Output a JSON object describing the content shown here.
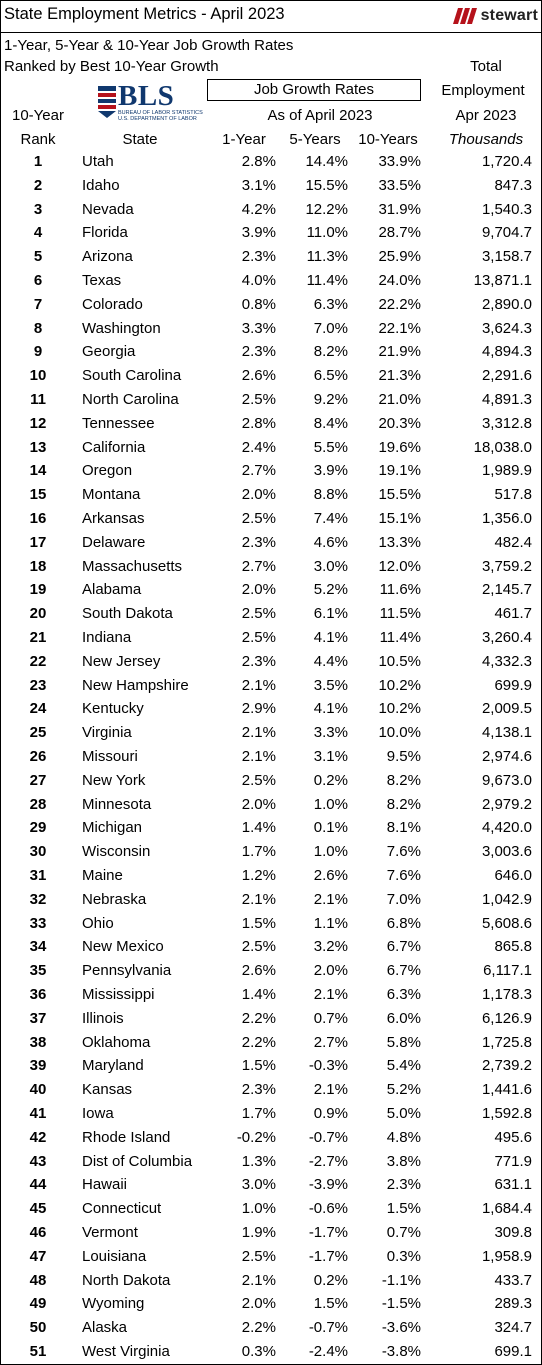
{
  "header": {
    "title": "State Employment Metrics - April 2023",
    "logo_text": "stewart",
    "subtitle_line1": "1-Year, 5-Year & 10-Year Job Growth Rates",
    "subtitle_line2": "Ranked by Best 10-Year Growth",
    "bls_text": "BLS",
    "bls_subtext_1": "BUREAU OF LABOR STATISTICS",
    "bls_subtext_2": "U.S. DEPARTMENT OF LABOR",
    "job_growth_box": "Job Growth Rates",
    "as_of": "As of April 2023",
    "total": "Total",
    "employment": "Employment",
    "apr": "Apr 2023",
    "rank_top": "10-Year",
    "rank_bottom": "Rank",
    "col_state": "State",
    "col_1y": "1-Year",
    "col_5y": "5-Years",
    "col_10y": "10-Years",
    "col_emp": "Thousands"
  },
  "rows": [
    {
      "rank": "1",
      "state": "Utah",
      "y1": "2.8%",
      "y5": "14.4%",
      "y10": "33.9%",
      "emp": "1,720.4"
    },
    {
      "rank": "2",
      "state": "Idaho",
      "y1": "3.1%",
      "y5": "15.5%",
      "y10": "33.5%",
      "emp": "847.3"
    },
    {
      "rank": "3",
      "state": "Nevada",
      "y1": "4.2%",
      "y5": "12.2%",
      "y10": "31.9%",
      "emp": "1,540.3"
    },
    {
      "rank": "4",
      "state": "Florida",
      "y1": "3.9%",
      "y5": "11.0%",
      "y10": "28.7%",
      "emp": "9,704.7"
    },
    {
      "rank": "5",
      "state": "Arizona",
      "y1": "2.3%",
      "y5": "11.3%",
      "y10": "25.9%",
      "emp": "3,158.7"
    },
    {
      "rank": "6",
      "state": "Texas",
      "y1": "4.0%",
      "y5": "11.4%",
      "y10": "24.0%",
      "emp": "13,871.1"
    },
    {
      "rank": "7",
      "state": "Colorado",
      "y1": "0.8%",
      "y5": "6.3%",
      "y10": "22.2%",
      "emp": "2,890.0"
    },
    {
      "rank": "8",
      "state": "Washington",
      "y1": "3.3%",
      "y5": "7.0%",
      "y10": "22.1%",
      "emp": "3,624.3"
    },
    {
      "rank": "9",
      "state": "Georgia",
      "y1": "2.3%",
      "y5": "8.2%",
      "y10": "21.9%",
      "emp": "4,894.3"
    },
    {
      "rank": "10",
      "state": "South Carolina",
      "y1": "2.6%",
      "y5": "6.5%",
      "y10": "21.3%",
      "emp": "2,291.6"
    },
    {
      "rank": "11",
      "state": "North Carolina",
      "y1": "2.5%",
      "y5": "9.2%",
      "y10": "21.0%",
      "emp": "4,891.3"
    },
    {
      "rank": "12",
      "state": "Tennessee",
      "y1": "2.8%",
      "y5": "8.4%",
      "y10": "20.3%",
      "emp": "3,312.8"
    },
    {
      "rank": "13",
      "state": "California",
      "y1": "2.4%",
      "y5": "5.5%",
      "y10": "19.6%",
      "emp": "18,038.0"
    },
    {
      "rank": "14",
      "state": "Oregon",
      "y1": "2.7%",
      "y5": "3.9%",
      "y10": "19.1%",
      "emp": "1,989.9"
    },
    {
      "rank": "15",
      "state": "Montana",
      "y1": "2.0%",
      "y5": "8.8%",
      "y10": "15.5%",
      "emp": "517.8"
    },
    {
      "rank": "16",
      "state": "Arkansas",
      "y1": "2.5%",
      "y5": "7.4%",
      "y10": "15.1%",
      "emp": "1,356.0"
    },
    {
      "rank": "17",
      "state": "Delaware",
      "y1": "2.3%",
      "y5": "4.6%",
      "y10": "13.3%",
      "emp": "482.4"
    },
    {
      "rank": "18",
      "state": "Massachusetts",
      "y1": "2.7%",
      "y5": "3.0%",
      "y10": "12.0%",
      "emp": "3,759.2"
    },
    {
      "rank": "19",
      "state": "Alabama",
      "y1": "2.0%",
      "y5": "5.2%",
      "y10": "11.6%",
      "emp": "2,145.7"
    },
    {
      "rank": "20",
      "state": "South Dakota",
      "y1": "2.5%",
      "y5": "6.1%",
      "y10": "11.5%",
      "emp": "461.7"
    },
    {
      "rank": "21",
      "state": "Indiana",
      "y1": "2.5%",
      "y5": "4.1%",
      "y10": "11.4%",
      "emp": "3,260.4"
    },
    {
      "rank": "22",
      "state": "New Jersey",
      "y1": "2.3%",
      "y5": "4.4%",
      "y10": "10.5%",
      "emp": "4,332.3"
    },
    {
      "rank": "23",
      "state": "New Hampshire",
      "y1": "2.1%",
      "y5": "3.5%",
      "y10": "10.2%",
      "emp": "699.9"
    },
    {
      "rank": "24",
      "state": "Kentucky",
      "y1": "2.9%",
      "y5": "4.1%",
      "y10": "10.2%",
      "emp": "2,009.5"
    },
    {
      "rank": "25",
      "state": "Virginia",
      "y1": "2.1%",
      "y5": "3.3%",
      "y10": "10.0%",
      "emp": "4,138.1"
    },
    {
      "rank": "26",
      "state": "Missouri",
      "y1": "2.1%",
      "y5": "3.1%",
      "y10": "9.5%",
      "emp": "2,974.6"
    },
    {
      "rank": "27",
      "state": "New York",
      "y1": "2.5%",
      "y5": "0.2%",
      "y10": "8.2%",
      "emp": "9,673.0"
    },
    {
      "rank": "28",
      "state": "Minnesota",
      "y1": "2.0%",
      "y5": "1.0%",
      "y10": "8.2%",
      "emp": "2,979.2"
    },
    {
      "rank": "29",
      "state": "Michigan",
      "y1": "1.4%",
      "y5": "0.1%",
      "y10": "8.1%",
      "emp": "4,420.0"
    },
    {
      "rank": "30",
      "state": "Wisconsin",
      "y1": "1.7%",
      "y5": "1.0%",
      "y10": "7.6%",
      "emp": "3,003.6"
    },
    {
      "rank": "31",
      "state": "Maine",
      "y1": "1.2%",
      "y5": "2.6%",
      "y10": "7.6%",
      "emp": "646.0"
    },
    {
      "rank": "32",
      "state": "Nebraska",
      "y1": "2.1%",
      "y5": "2.1%",
      "y10": "7.0%",
      "emp": "1,042.9"
    },
    {
      "rank": "33",
      "state": "Ohio",
      "y1": "1.5%",
      "y5": "1.1%",
      "y10": "6.8%",
      "emp": "5,608.6"
    },
    {
      "rank": "34",
      "state": "New Mexico",
      "y1": "2.5%",
      "y5": "3.2%",
      "y10": "6.7%",
      "emp": "865.8"
    },
    {
      "rank": "35",
      "state": "Pennsylvania",
      "y1": "2.6%",
      "y5": "2.0%",
      "y10": "6.7%",
      "emp": "6,117.1"
    },
    {
      "rank": "36",
      "state": "Mississippi",
      "y1": "1.4%",
      "y5": "2.1%",
      "y10": "6.3%",
      "emp": "1,178.3"
    },
    {
      "rank": "37",
      "state": "Illinois",
      "y1": "2.2%",
      "y5": "0.7%",
      "y10": "6.0%",
      "emp": "6,126.9"
    },
    {
      "rank": "38",
      "state": "Oklahoma",
      "y1": "2.2%",
      "y5": "2.7%",
      "y10": "5.8%",
      "emp": "1,725.8"
    },
    {
      "rank": "39",
      "state": "Maryland",
      "y1": "1.5%",
      "y5": "-0.3%",
      "y10": "5.4%",
      "emp": "2,739.2"
    },
    {
      "rank": "40",
      "state": "Kansas",
      "y1": "2.3%",
      "y5": "2.1%",
      "y10": "5.2%",
      "emp": "1,441.6"
    },
    {
      "rank": "41",
      "state": "Iowa",
      "y1": "1.7%",
      "y5": "0.9%",
      "y10": "5.0%",
      "emp": "1,592.8"
    },
    {
      "rank": "42",
      "state": "Rhode Island",
      "y1": "-0.2%",
      "y5": "-0.7%",
      "y10": "4.8%",
      "emp": "495.6"
    },
    {
      "rank": "43",
      "state": "Dist of Columbia",
      "y1": "1.3%",
      "y5": "-2.7%",
      "y10": "3.8%",
      "emp": "771.9"
    },
    {
      "rank": "44",
      "state": "Hawaii",
      "y1": "3.0%",
      "y5": "-3.9%",
      "y10": "2.3%",
      "emp": "631.1"
    },
    {
      "rank": "45",
      "state": "Connecticut",
      "y1": "1.0%",
      "y5": "-0.6%",
      "y10": "1.5%",
      "emp": "1,684.4"
    },
    {
      "rank": "46",
      "state": "Vermont",
      "y1": "1.9%",
      "y5": "-1.7%",
      "y10": "0.7%",
      "emp": "309.8"
    },
    {
      "rank": "47",
      "state": "Louisiana",
      "y1": "2.5%",
      "y5": "-1.7%",
      "y10": "0.3%",
      "emp": "1,958.9"
    },
    {
      "rank": "48",
      "state": "North Dakota",
      "y1": "2.1%",
      "y5": "0.2%",
      "y10": "-1.1%",
      "emp": "433.7"
    },
    {
      "rank": "49",
      "state": "Wyoming",
      "y1": "2.0%",
      "y5": "1.5%",
      "y10": "-1.5%",
      "emp": "289.3"
    },
    {
      "rank": "50",
      "state": "Alaska",
      "y1": "2.2%",
      "y5": "-0.7%",
      "y10": "-3.6%",
      "emp": "324.7"
    },
    {
      "rank": "51",
      "state": "West Virginia",
      "y1": "0.3%",
      "y5": "-2.4%",
      "y10": "-3.8%",
      "emp": "699.1"
    }
  ],
  "colors": {
    "stewart_red": "#b5121b",
    "bls_blue": "#10386e"
  }
}
